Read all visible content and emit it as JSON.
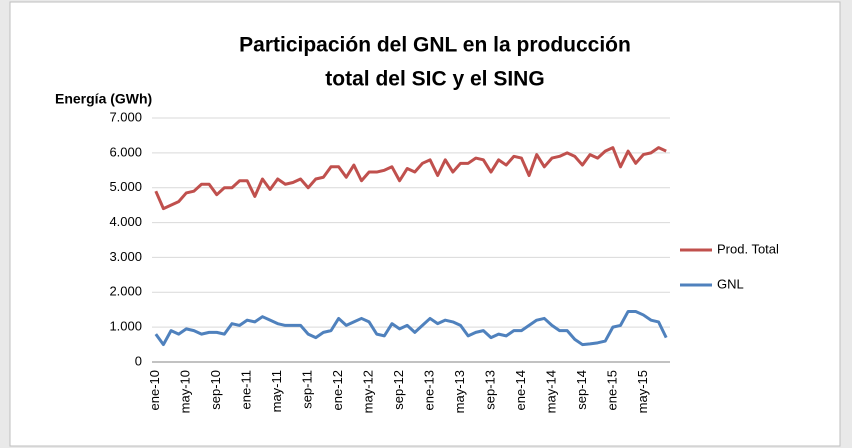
{
  "chart_data": {
    "type": "line",
    "title": [
      "Participación del GNL en la producción",
      "total del SIC y el SING"
    ],
    "y_label": "Energía (GWh)",
    "categories": [
      "ene-10",
      null,
      null,
      null,
      "may-10",
      null,
      null,
      null,
      "sep-10",
      null,
      null,
      null,
      "ene-11",
      null,
      null,
      null,
      "may-11",
      null,
      null,
      null,
      "sep-11",
      null,
      null,
      null,
      "ene-12",
      null,
      null,
      null,
      "may-12",
      null,
      null,
      null,
      "sep-12",
      null,
      null,
      null,
      "ene-13",
      null,
      null,
      null,
      "may-13",
      null,
      null,
      null,
      "sep-13",
      null,
      null,
      null,
      "ene-14",
      null,
      null,
      null,
      "may-14",
      null,
      null,
      null,
      "sep-14",
      null,
      null,
      null,
      "ene-15",
      null,
      null,
      null,
      "may-15",
      null,
      null,
      null
    ],
    "series": [
      {
        "name": "Prod. Total",
        "color": "#c0504d",
        "values": [
          4900,
          4400,
          4500,
          4600,
          4850,
          4900,
          5100,
          5100,
          4800,
          5000,
          5000,
          5200,
          5200,
          4750,
          5250,
          4950,
          5250,
          5100,
          5150,
          5250,
          5000,
          5250,
          5300,
          5600,
          5600,
          5300,
          5650,
          5200,
          5450,
          5450,
          5500,
          5600,
          5200,
          5550,
          5450,
          5700,
          5800,
          5350,
          5800,
          5450,
          5700,
          5700,
          5850,
          5800,
          5450,
          5800,
          5650,
          5900,
          5850,
          5350,
          5950,
          5600,
          5850,
          5900,
          6000,
          5900,
          5650,
          5950,
          5850,
          6050,
          6150,
          5600,
          6050,
          5700,
          5950,
          6000,
          6150,
          6050
        ]
      },
      {
        "name": "GNL",
        "color": "#4f81bd",
        "values": [
          800,
          500,
          900,
          800,
          950,
          900,
          800,
          850,
          850,
          800,
          1100,
          1050,
          1200,
          1150,
          1300,
          1200,
          1100,
          1050,
          1050,
          1050,
          800,
          700,
          850,
          900,
          1250,
          1050,
          1150,
          1250,
          1150,
          800,
          750,
          1100,
          950,
          1050,
          850,
          1050,
          1250,
          1100,
          1200,
          1150,
          1050,
          750,
          850,
          900,
          700,
          800,
          750,
          900,
          900,
          1050,
          1200,
          1250,
          1050,
          900,
          900,
          650,
          500,
          520,
          550,
          600,
          1000,
          1050,
          1450,
          1450,
          1350,
          1200,
          1150,
          700
        ]
      }
    ],
    "ylim": [
      0,
      7000
    ],
    "yticks": [
      0,
      {
        "value": 1000,
        "label": "1.000"
      },
      {
        "value": 2000,
        "label": "2.000"
      },
      {
        "value": 3000,
        "label": "3.000"
      },
      {
        "value": 4000,
        "label": "4.000"
      },
      {
        "value": 5000,
        "label": "5.000"
      },
      {
        "value": 6000,
        "label": "6.000"
      },
      {
        "value": 7000,
        "label": "7.000"
      }
    ],
    "grid": true,
    "legend": "right"
  }
}
